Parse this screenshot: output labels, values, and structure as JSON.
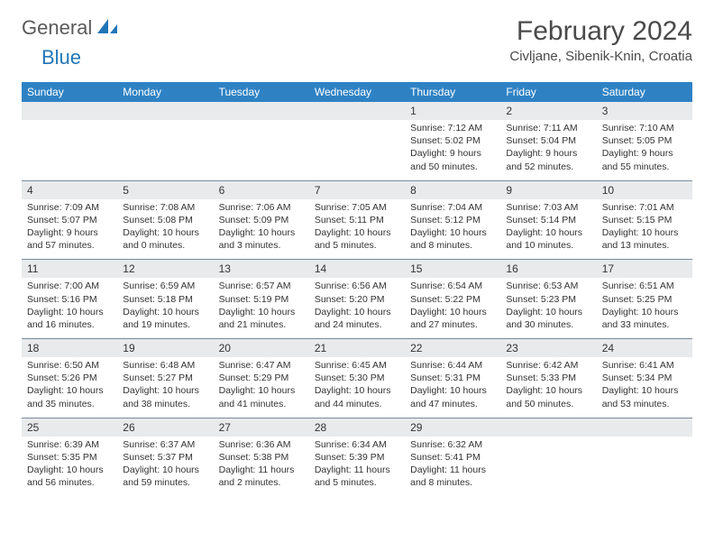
{
  "logo": {
    "text_gray": "General",
    "text_blue": "Blue"
  },
  "title": "February 2024",
  "location": "Civljane, Sibenik-Knin, Croatia",
  "colors": {
    "header_bg": "#2e82c4",
    "header_text": "#ffffff",
    "day_num_bg": "#e8eaec",
    "border": "#7a8a9a",
    "text": "#333333",
    "logo_blue": "#2176b8"
  },
  "day_headers": [
    "Sunday",
    "Monday",
    "Tuesday",
    "Wednesday",
    "Thursday",
    "Friday",
    "Saturday"
  ],
  "weeks": [
    [
      null,
      null,
      null,
      null,
      {
        "n": "1",
        "sr": "7:12 AM",
        "ss": "5:02 PM",
        "dl": "9 hours and 50 minutes."
      },
      {
        "n": "2",
        "sr": "7:11 AM",
        "ss": "5:04 PM",
        "dl": "9 hours and 52 minutes."
      },
      {
        "n": "3",
        "sr": "7:10 AM",
        "ss": "5:05 PM",
        "dl": "9 hours and 55 minutes."
      }
    ],
    [
      {
        "n": "4",
        "sr": "7:09 AM",
        "ss": "5:07 PM",
        "dl": "9 hours and 57 minutes."
      },
      {
        "n": "5",
        "sr": "7:08 AM",
        "ss": "5:08 PM",
        "dl": "10 hours and 0 minutes."
      },
      {
        "n": "6",
        "sr": "7:06 AM",
        "ss": "5:09 PM",
        "dl": "10 hours and 3 minutes."
      },
      {
        "n": "7",
        "sr": "7:05 AM",
        "ss": "5:11 PM",
        "dl": "10 hours and 5 minutes."
      },
      {
        "n": "8",
        "sr": "7:04 AM",
        "ss": "5:12 PM",
        "dl": "10 hours and 8 minutes."
      },
      {
        "n": "9",
        "sr": "7:03 AM",
        "ss": "5:14 PM",
        "dl": "10 hours and 10 minutes."
      },
      {
        "n": "10",
        "sr": "7:01 AM",
        "ss": "5:15 PM",
        "dl": "10 hours and 13 minutes."
      }
    ],
    [
      {
        "n": "11",
        "sr": "7:00 AM",
        "ss": "5:16 PM",
        "dl": "10 hours and 16 minutes."
      },
      {
        "n": "12",
        "sr": "6:59 AM",
        "ss": "5:18 PM",
        "dl": "10 hours and 19 minutes."
      },
      {
        "n": "13",
        "sr": "6:57 AM",
        "ss": "5:19 PM",
        "dl": "10 hours and 21 minutes."
      },
      {
        "n": "14",
        "sr": "6:56 AM",
        "ss": "5:20 PM",
        "dl": "10 hours and 24 minutes."
      },
      {
        "n": "15",
        "sr": "6:54 AM",
        "ss": "5:22 PM",
        "dl": "10 hours and 27 minutes."
      },
      {
        "n": "16",
        "sr": "6:53 AM",
        "ss": "5:23 PM",
        "dl": "10 hours and 30 minutes."
      },
      {
        "n": "17",
        "sr": "6:51 AM",
        "ss": "5:25 PM",
        "dl": "10 hours and 33 minutes."
      }
    ],
    [
      {
        "n": "18",
        "sr": "6:50 AM",
        "ss": "5:26 PM",
        "dl": "10 hours and 35 minutes."
      },
      {
        "n": "19",
        "sr": "6:48 AM",
        "ss": "5:27 PM",
        "dl": "10 hours and 38 minutes."
      },
      {
        "n": "20",
        "sr": "6:47 AM",
        "ss": "5:29 PM",
        "dl": "10 hours and 41 minutes."
      },
      {
        "n": "21",
        "sr": "6:45 AM",
        "ss": "5:30 PM",
        "dl": "10 hours and 44 minutes."
      },
      {
        "n": "22",
        "sr": "6:44 AM",
        "ss": "5:31 PM",
        "dl": "10 hours and 47 minutes."
      },
      {
        "n": "23",
        "sr": "6:42 AM",
        "ss": "5:33 PM",
        "dl": "10 hours and 50 minutes."
      },
      {
        "n": "24",
        "sr": "6:41 AM",
        "ss": "5:34 PM",
        "dl": "10 hours and 53 minutes."
      }
    ],
    [
      {
        "n": "25",
        "sr": "6:39 AM",
        "ss": "5:35 PM",
        "dl": "10 hours and 56 minutes."
      },
      {
        "n": "26",
        "sr": "6:37 AM",
        "ss": "5:37 PM",
        "dl": "10 hours and 59 minutes."
      },
      {
        "n": "27",
        "sr": "6:36 AM",
        "ss": "5:38 PM",
        "dl": "11 hours and 2 minutes."
      },
      {
        "n": "28",
        "sr": "6:34 AM",
        "ss": "5:39 PM",
        "dl": "11 hours and 5 minutes."
      },
      {
        "n": "29",
        "sr": "6:32 AM",
        "ss": "5:41 PM",
        "dl": "11 hours and 8 minutes."
      },
      null,
      null
    ]
  ],
  "labels": {
    "sunrise": "Sunrise:",
    "sunset": "Sunset:",
    "daylight": "Daylight:"
  }
}
